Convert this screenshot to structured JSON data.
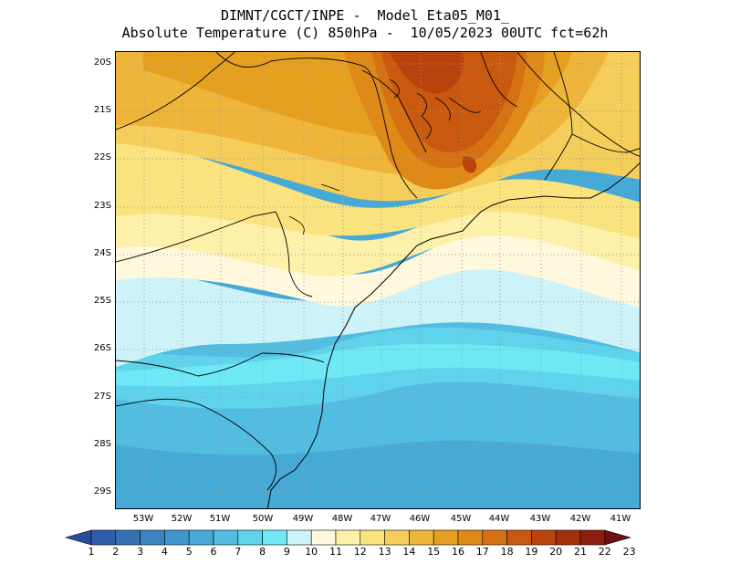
{
  "header": {
    "line1": "DIMNT/CGCT/INPE -  Model Eta05_M01_",
    "line2": "Absolute Temperature (C) 850hPa -  10/05/2023 00UTC fct=62h"
  },
  "map": {
    "lat_labels": [
      "20S",
      "21S",
      "22S",
      "23S",
      "24S",
      "25S",
      "26S",
      "27S",
      "28S",
      "29S"
    ],
    "lon_labels": [
      "53W",
      "52W",
      "51W",
      "50W",
      "49W",
      "48W",
      "47W",
      "46W",
      "45W",
      "44W",
      "43W",
      "42W",
      "41W"
    ],
    "grid": "dotted"
  },
  "colorbar": {
    "labels": [
      "1",
      "2",
      "3",
      "4",
      "5",
      "6",
      "7",
      "8",
      "9",
      "10",
      "11",
      "12",
      "13",
      "14",
      "15",
      "16",
      "17",
      "18",
      "19",
      "20",
      "21",
      "22",
      "23"
    ],
    "colors": [
      "#2a4d9b",
      "#2f5ea8",
      "#3570b5",
      "#3b83c2",
      "#3f96cc",
      "#47aad6",
      "#52bde0",
      "#5fd3ec",
      "#6fe8f6",
      "#cdf3f9",
      "#fff8dc",
      "#fdf0a8",
      "#fae27e",
      "#f5cd5a",
      "#eeb53a",
      "#e6a020",
      "#de8918",
      "#d57112",
      "#c9590e",
      "#b8430c",
      "#a2300c",
      "#8b1e0e",
      "#6e0f14"
    ]
  },
  "colors": {
    "frame": "#000000",
    "grid": "#9a9a9a",
    "coast": "#000000"
  }
}
